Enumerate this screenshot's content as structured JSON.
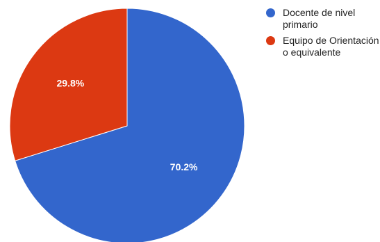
{
  "chart_data": {
    "type": "pie",
    "slices": [
      {
        "label": "Docente de nivel primario",
        "value": 70.2,
        "display": "70.2%",
        "color": "#3366cc"
      },
      {
        "label": "Equipo de Orientación o equivalente",
        "value": 29.8,
        "display": "29.8%",
        "color": "#dc3912"
      }
    ],
    "start_angle_deg": 0,
    "direction": "clockwise",
    "legend_position": "right"
  }
}
